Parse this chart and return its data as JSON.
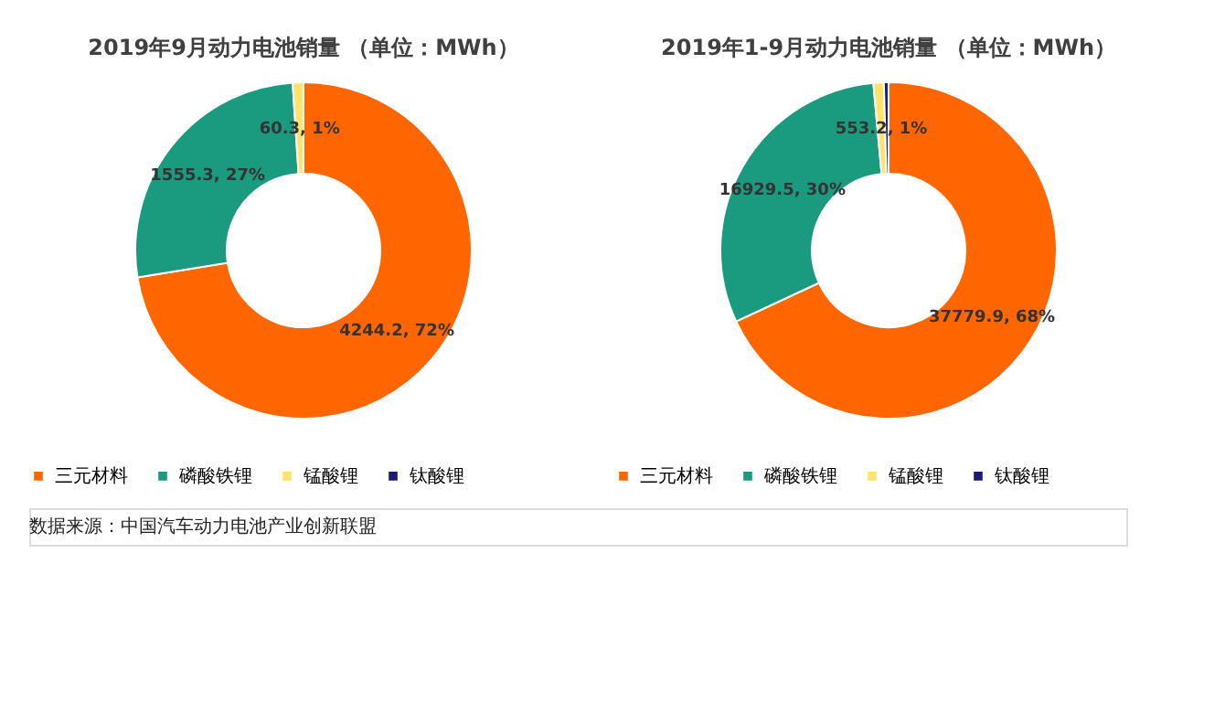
{
  "chart_data": [
    {
      "type": "donut",
      "title": "2019年9月动力电池销量        （单位：MWh）",
      "categories": [
        "三元材料",
        "磷酸铁锂",
        "锰酸锂",
        "钛酸锂"
      ],
      "values": [
        4244.2,
        1555.3,
        60.3,
        null
      ],
      "colors": [
        "#ff6600",
        "#1a9a7f",
        "#ffe36b",
        "#1f1a7a"
      ],
      "value_labels": [
        "4244.2, 72%",
        "1555.3, 27%",
        "60.3, 1%",
        null
      ],
      "legend": "bottom",
      "annotations": [
        "数据来源：中国汽车动力电池产业创新联盟"
      ]
    },
    {
      "type": "donut",
      "title": "2019年1-9月动力电池销量    （单位：MWh）",
      "categories": [
        "三元材料",
        "磷酸铁锂",
        "锰酸锂",
        "钛酸锂"
      ],
      "values": [
        37779.9,
        16929.5,
        553.2,
        250
      ],
      "colors": [
        "#ff6600",
        "#1a9a7f",
        "#ffe36b",
        "#1f1a7a"
      ],
      "value_labels": [
        "37779.9, 68%",
        "16929.5, 30%",
        "553.2, 1%",
        null
      ],
      "legend": "bottom"
    }
  ]
}
